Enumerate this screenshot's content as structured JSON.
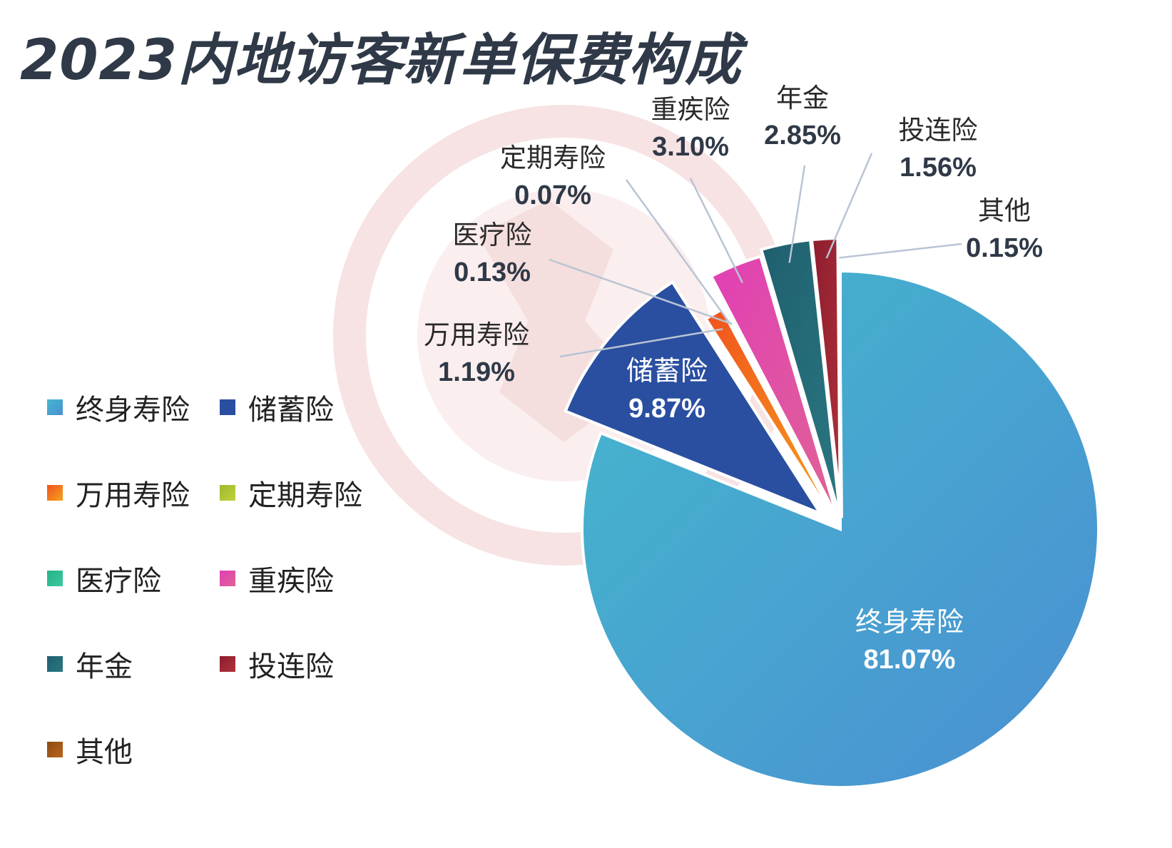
{
  "title": "2023内地访客新单保费构成",
  "chart_data": {
    "type": "pie",
    "title": "2023内地访客新单保费构成",
    "legend_position": "left",
    "slices": [
      {
        "name": "终身寿险",
        "value": 81.07,
        "label": "81.07%",
        "color": "#45b8cd",
        "color2": "#4a8fd2"
      },
      {
        "name": "储蓄险",
        "value": 9.87,
        "label": "9.87%",
        "color": "#2a4fa0",
        "color2": "#2a4fa0"
      },
      {
        "name": "万用寿险",
        "value": 1.19,
        "label": "1.19%",
        "color": "#f0531e",
        "color2": "#f7a21b"
      },
      {
        "name": "定期寿险",
        "value": 0.07,
        "label": "0.07%",
        "color": "#9bbb2f",
        "color2": "#c3cf3a"
      },
      {
        "name": "医疗险",
        "value": 0.13,
        "label": "0.13%",
        "color": "#25b387",
        "color2": "#3cc7a0"
      },
      {
        "name": "重疾险",
        "value": 3.1,
        "label": "3.10%",
        "color": "#e13fb5",
        "color2": "#e06394"
      },
      {
        "name": "年金",
        "value": 2.85,
        "label": "2.85%",
        "color": "#1f5f6e",
        "color2": "#2a7782"
      },
      {
        "name": "投连险",
        "value": 1.56,
        "label": "1.56%",
        "color": "#8d1d2f",
        "color2": "#b0323a"
      },
      {
        "name": "其他",
        "value": 0.15,
        "label": "0.15%",
        "color": "#8a4a12",
        "color2": "#b9651c"
      }
    ]
  }
}
